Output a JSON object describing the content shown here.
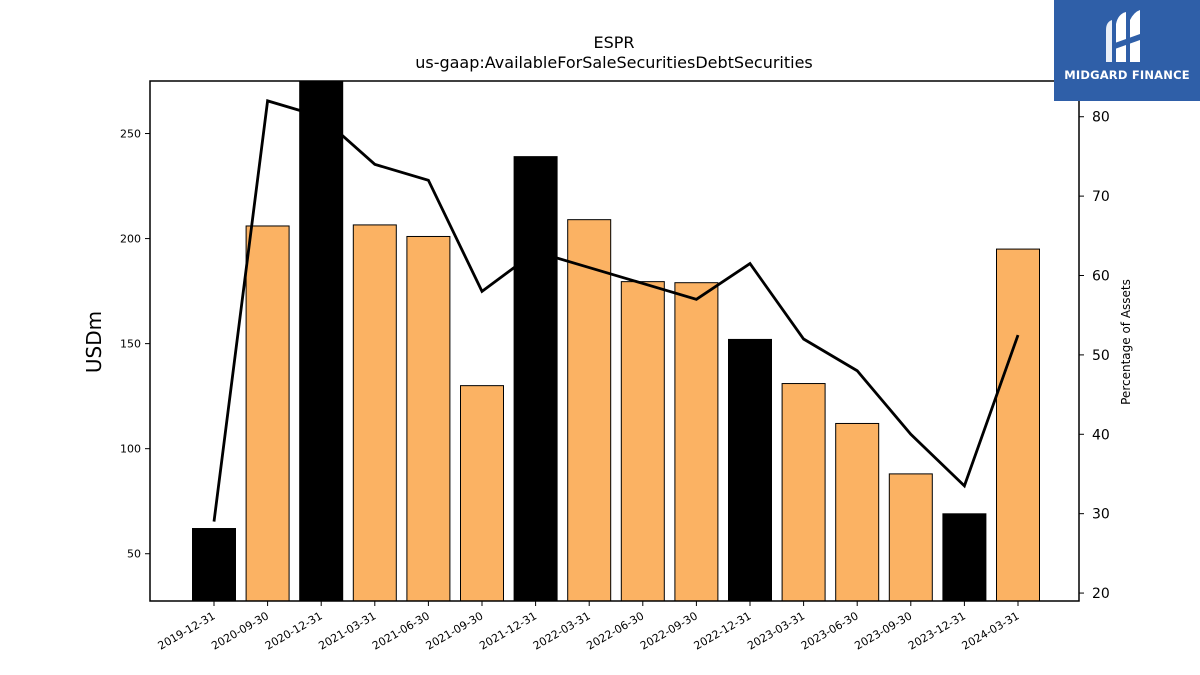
{
  "chart_data": {
    "type": "bar",
    "title": "ESPR",
    "subtitle": "us-gaap:AvailableForSaleSecuritiesDebtSecurities",
    "ylabel": "USDm",
    "y2label": "Percentage of Assets",
    "categories": [
      "2019-12-31",
      "2020-09-30",
      "2020-12-31",
      "2021-03-31",
      "2021-06-30",
      "2021-09-30",
      "2021-12-31",
      "2022-03-31",
      "2022-06-30",
      "2022-09-30",
      "2022-12-31",
      "2023-03-31",
      "2023-06-30",
      "2023-09-30",
      "2023-12-31",
      "2024-03-31"
    ],
    "series": [
      {
        "type": "bar",
        "values": [
          62,
          206,
          276,
          206.5,
          201,
          130,
          239,
          209,
          179.5,
          179,
          152,
          131,
          112,
          88,
          69,
          195
        ],
        "colors": [
          "#000000",
          "#fbb263",
          "#000000",
          "#fbb263",
          "#fbb263",
          "#fbb263",
          "#000000",
          "#fbb263",
          "#fbb263",
          "#fbb263",
          "#000000",
          "#fbb263",
          "#fbb263",
          "#fbb263",
          "#000000",
          "#fbb263"
        ]
      },
      {
        "type": "line",
        "axis": "right",
        "color": "#000000",
        "values": [
          29,
          82,
          80,
          74,
          72,
          58,
          63,
          61,
          59,
          57,
          61.5,
          52,
          48,
          40,
          33.5,
          52.5
        ]
      }
    ],
    "ylim": [
      27.5,
      275
    ],
    "yticks": [
      50,
      100,
      150,
      200,
      250
    ],
    "y2lim": [
      19,
      84.5
    ],
    "y2ticks": [
      20,
      30,
      40,
      50,
      60,
      70,
      80
    ],
    "grid": false
  },
  "logo": {
    "text": "MIDGARD FINANCE",
    "bg_color": "#2f5fa8"
  }
}
